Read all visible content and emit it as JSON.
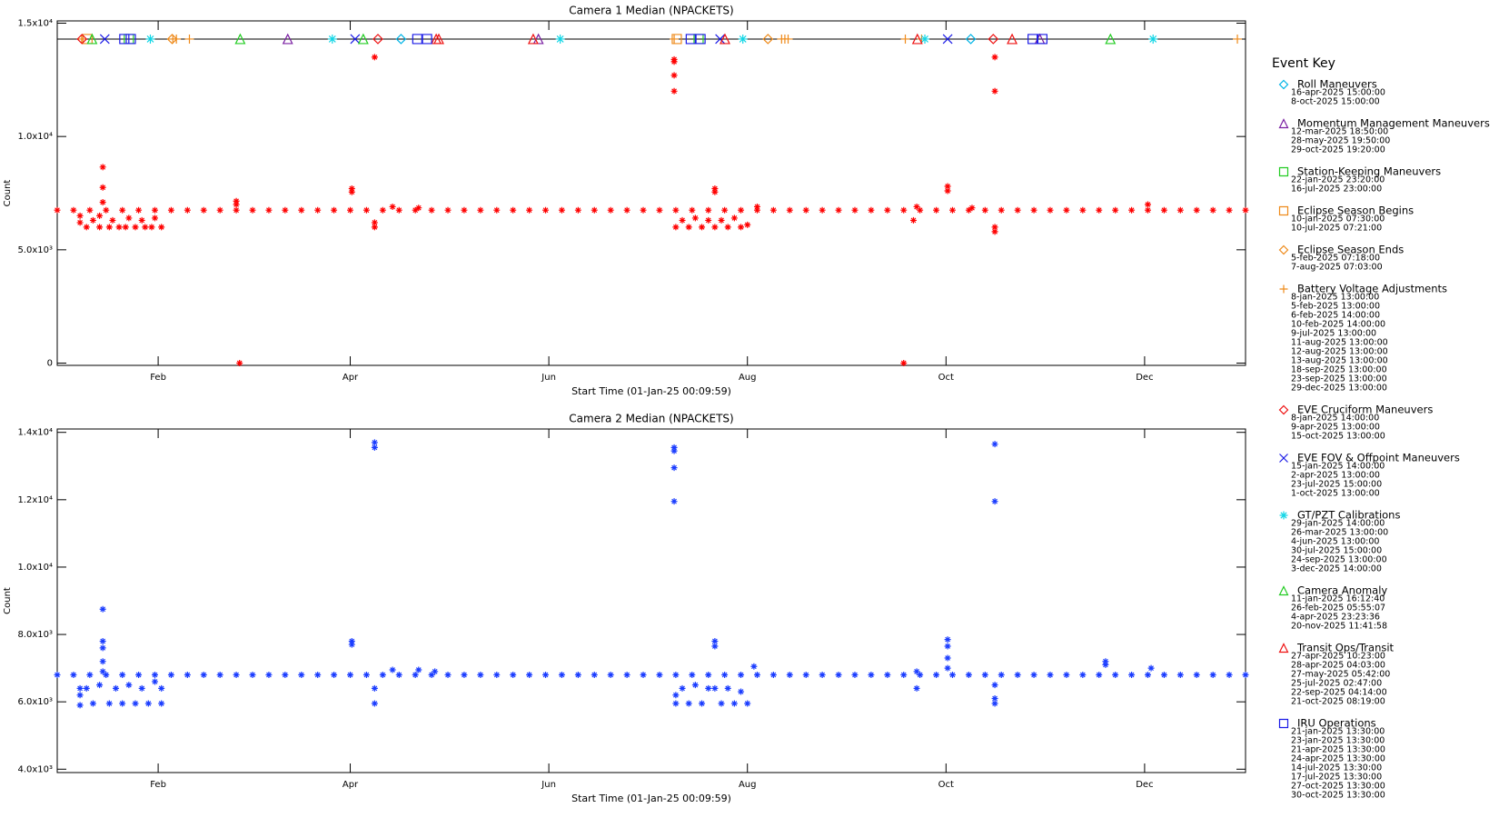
{
  "chart_data": [
    {
      "type": "scatter",
      "title": "Camera 1 Median (NPACKETS)",
      "xlabel": "Start Time (01-Jan-25 00:09:59)",
      "ylabel": "Count",
      "color": "#ff0000",
      "xlim": [
        0,
        365
      ],
      "ylim": [
        -100,
        15100
      ],
      "xticks": [
        {
          "value": 31,
          "label": "Feb"
        },
        {
          "value": 90,
          "label": "Apr"
        },
        {
          "value": 151,
          "label": "Jun"
        },
        {
          "value": 212,
          "label": "Aug"
        },
        {
          "value": 273,
          "label": "Oct"
        },
        {
          "value": 334,
          "label": "Dec"
        }
      ],
      "yticks": [
        0,
        {
          "value": 5000,
          "label": "5.0x10³"
        },
        {
          "value": 10000,
          "label": "1.0x10⁴"
        },
        {
          "value": 15000,
          "label": "1.5x10⁴"
        }
      ],
      "x": [
        0,
        5,
        10,
        15,
        20,
        25,
        30,
        35,
        40,
        45,
        50,
        55,
        60,
        65,
        70,
        75,
        80,
        85,
        90,
        95,
        100,
        105,
        110,
        115,
        120,
        125,
        130,
        135,
        140,
        145,
        150,
        155,
        160,
        165,
        170,
        175,
        180,
        185,
        190,
        195,
        200,
        205,
        210,
        215,
        220,
        225,
        230,
        235,
        240,
        245,
        250,
        255,
        260,
        265,
        270,
        275,
        280,
        285,
        290,
        295,
        300,
        305,
        310,
        315,
        320,
        325,
        330,
        335,
        340,
        345,
        350,
        355,
        360,
        365,
        7,
        7,
        9,
        11,
        13,
        13,
        14,
        14,
        14,
        16,
        17,
        19,
        21,
        22,
        24,
        26,
        27,
        29,
        30,
        32,
        55,
        55,
        56,
        90.5,
        90.5,
        97.5,
        97.5,
        97.5,
        103,
        111,
        189.5,
        189.5,
        189.5,
        189.5,
        190,
        192,
        194,
        196,
        198,
        200,
        202,
        202,
        202,
        204,
        206,
        208,
        210,
        212,
        215,
        260,
        263,
        264,
        273.5,
        273.5,
        281,
        288,
        288,
        288,
        288,
        335
      ],
      "values": [
        6750,
        6750,
        6750,
        6750,
        6750,
        6750,
        6750,
        6750,
        6750,
        6750,
        6750,
        6750,
        6750,
        6750,
        6750,
        6750,
        6750,
        6750,
        6750,
        6750,
        6750,
        6750,
        6750,
        6750,
        6750,
        6750,
        6750,
        6750,
        6750,
        6750,
        6750,
        6750,
        6750,
        6750,
        6750,
        6750,
        6750,
        6750,
        6750,
        6750,
        6750,
        6750,
        6750,
        6750,
        6750,
        6750,
        6750,
        6750,
        6750,
        6750,
        6750,
        6750,
        6750,
        6750,
        6750,
        6750,
        6750,
        6750,
        6750,
        6750,
        6750,
        6750,
        6750,
        6750,
        6750,
        6750,
        6750,
        6750,
        6750,
        6750,
        6750,
        6750,
        6750,
        6750,
        6200,
        6500,
        6000,
        6300,
        6000,
        6500,
        8650,
        7750,
        7100,
        6000,
        6300,
        6000,
        6000,
        6400,
        6000,
        6300,
        6000,
        6000,
        6400,
        6000,
        7150,
        7000,
        0,
        7700,
        7550,
        13500,
        6200,
        6000,
        6900,
        6850,
        13400,
        13300,
        12700,
        12000,
        6000,
        6300,
        6000,
        6400,
        6000,
        6300,
        7700,
        7550,
        6000,
        6300,
        6000,
        6400,
        6000,
        6100,
        6900,
        0,
        6300,
        6900,
        7800,
        7600,
        6850,
        13500,
        12000,
        6000,
        5800,
        7000
      ],
      "event_y": 14300,
      "event_key_title": "Event Key",
      "events": [
        {
          "name": "Roll Maneuvers",
          "color": "#00b4e6",
          "symbol": "diamond",
          "dates": [
            "16-apr-2025 15:00:00",
            "8-oct-2025 15:00:00"
          ],
          "x": [
            105.6,
            280.6
          ]
        },
        {
          "name": "Momentum Management Maneuvers",
          "color": "#7a1fa2",
          "symbol": "triangle",
          "dates": [
            "12-mar-2025 18:50:00",
            "28-may-2025 19:50:00",
            "29-oct-2025 19:20:00"
          ],
          "x": [
            70.8,
            147.8,
            301.8
          ]
        },
        {
          "name": "Station-Keeping Maneuvers",
          "color": "#22cc22",
          "symbol": "square",
          "dates": [
            "22-jan-2025 23:20:00",
            "16-jul-2025 23:00:00"
          ],
          "x": [
            22.0,
            197.0
          ]
        },
        {
          "name": "Eclipse Season Begins",
          "color": "#ee8a1a",
          "symbol": "square",
          "dates": [
            "10-jan-2025 07:30:00",
            "10-jul-2025 07:21:00"
          ],
          "x": [
            9.3,
            190.3
          ]
        },
        {
          "name": "Eclipse Season Ends",
          "color": "#ee8a1a",
          "symbol": "diamond",
          "dates": [
            "5-feb-2025 07:18:00",
            "7-aug-2025 07:03:00"
          ],
          "x": [
            35.3,
            218.3
          ]
        },
        {
          "name": "Battery Voltage Adjustments",
          "color": "#ee8a1a",
          "symbol": "plus",
          "dates": [
            "8-jan-2025 13:00:00",
            "5-feb-2025 13:00:00",
            "6-feb-2025 14:00:00",
            "10-feb-2025 14:00:00",
            "9-jul-2025 13:00:00",
            "11-aug-2025 13:00:00",
            "12-aug-2025 13:00:00",
            "13-aug-2025 13:00:00",
            "18-sep-2025 13:00:00",
            "23-sep-2025 13:00:00",
            "29-dec-2025 13:00:00"
          ],
          "x": [
            7.5,
            35.5,
            36.6,
            40.6,
            189.5,
            222.5,
            223.5,
            224.5,
            260.5,
            265.5,
            362.5
          ]
        },
        {
          "name": "EVE Cruciform Maneuvers",
          "color": "#ee1111",
          "symbol": "diamond",
          "dates": [
            "8-jan-2025 14:00:00",
            "9-apr-2025 13:00:00",
            "15-oct-2025 13:00:00"
          ],
          "x": [
            7.6,
            98.5,
            287.5
          ]
        },
        {
          "name": "EVE FOV & Offpoint Maneuvers",
          "color": "#1a1ae6",
          "symbol": "x",
          "dates": [
            "15-jan-2025 14:00:00",
            "2-apr-2025 13:00:00",
            "23-jul-2025 15:00:00",
            "1-oct-2025 13:00:00"
          ],
          "x": [
            14.6,
            91.5,
            203.6,
            273.5
          ]
        },
        {
          "name": "GT/PZT Calibrations",
          "color": "#11d6e6",
          "symbol": "asterisk",
          "dates": [
            "29-jan-2025 14:00:00",
            "26-mar-2025 13:00:00",
            "4-jun-2025 13:00:00",
            "30-jul-2025 15:00:00",
            "24-sep-2025 13:00:00",
            "3-dec-2025 14:00:00"
          ],
          "x": [
            28.6,
            84.5,
            154.5,
            210.6,
            266.5,
            336.6
          ]
        },
        {
          "name": "Camera Anomaly",
          "color": "#22cc22",
          "symbol": "triangle",
          "dates": [
            "11-jan-2025 16:12:40",
            "26-feb-2025 05:55:07",
            "4-apr-2025 23:23:36",
            "20-nov-2025 11:41:58"
          ],
          "x": [
            10.7,
            56.2,
            94.0,
            323.5
          ]
        },
        {
          "name": "Transit Ops/Transit",
          "color": "#ee1111",
          "symbol": "triangle",
          "dates": [
            "27-apr-2025 10:23:00",
            "28-apr-2025 04:03:00",
            "27-may-2025 05:42:00",
            "25-jul-2025 02:47:00",
            "22-sep-2025 04:14:00",
            "21-oct-2025 08:19:00"
          ],
          "x": [
            116.4,
            117.2,
            146.2,
            205.1,
            264.2,
            293.3
          ]
        },
        {
          "name": "IRU Operations",
          "color": "#1a1ae6",
          "symbol": "square",
          "dates": [
            "21-jan-2025 13:30:00",
            "23-jan-2025 13:30:00",
            "21-apr-2025 13:30:00",
            "24-apr-2025 13:30:00",
            "14-jul-2025 13:30:00",
            "17-jul-2025 13:30:00",
            "27-oct-2025 13:30:00",
            "30-oct-2025 13:30:00"
          ],
          "x": [
            20.6,
            22.6,
            110.6,
            113.6,
            194.6,
            197.6,
            299.6,
            302.6
          ]
        }
      ]
    },
    {
      "type": "scatter",
      "title": "Camera 2 Median (NPACKETS)",
      "xlabel": "Start Time (01-Jan-25 00:09:59)",
      "ylabel": "Count",
      "color": "#1a3cff",
      "xlim": [
        0,
        365
      ],
      "ylim": [
        3900,
        14100
      ],
      "xticks": [
        {
          "value": 31,
          "label": "Feb"
        },
        {
          "value": 90,
          "label": "Apr"
        },
        {
          "value": 151,
          "label": "Jun"
        },
        {
          "value": 212,
          "label": "Aug"
        },
        {
          "value": 273,
          "label": "Oct"
        },
        {
          "value": 334,
          "label": "Dec"
        }
      ],
      "yticks": [
        {
          "value": 4000,
          "label": "4.0x10³"
        },
        {
          "value": 6000,
          "label": "6.0x10³"
        },
        {
          "value": 8000,
          "label": "8.0x10³"
        },
        {
          "value": 10000,
          "label": "1.0x10⁴"
        },
        {
          "value": 12000,
          "label": "1.2x10⁴"
        },
        {
          "value": 14000,
          "label": "1.4x10⁴"
        }
      ],
      "x": [
        0,
        5,
        10,
        15,
        20,
        25,
        30,
        35,
        40,
        45,
        50,
        55,
        60,
        65,
        70,
        75,
        80,
        85,
        90,
        95,
        100,
        105,
        110,
        115,
        120,
        125,
        130,
        135,
        140,
        145,
        150,
        155,
        160,
        165,
        170,
        175,
        180,
        185,
        190,
        195,
        200,
        205,
        210,
        215,
        220,
        225,
        230,
        235,
        240,
        245,
        250,
        255,
        260,
        265,
        270,
        275,
        280,
        285,
        290,
        295,
        300,
        305,
        310,
        315,
        320,
        325,
        330,
        335,
        340,
        345,
        350,
        355,
        360,
        365,
        7,
        7,
        7,
        9,
        11,
        13,
        14,
        14,
        14,
        14,
        14,
        16,
        18,
        20,
        22,
        24,
        26,
        28,
        30,
        32,
        32,
        90.5,
        90.5,
        97.5,
        97.5,
        97.5,
        97.5,
        103,
        111,
        116,
        189.5,
        189.5,
        189.5,
        189.5,
        190,
        190,
        192,
        194,
        196,
        198,
        200,
        202,
        202,
        202,
        204,
        206,
        208,
        210,
        212,
        214,
        264,
        264,
        273.5,
        273.5,
        273.5,
        273.5,
        288,
        288,
        288,
        288,
        288,
        322,
        322,
        336
      ],
      "values": [
        6800,
        6800,
        6800,
        6800,
        6800,
        6800,
        6800,
        6800,
        6800,
        6800,
        6800,
        6800,
        6800,
        6800,
        6800,
        6800,
        6800,
        6800,
        6800,
        6800,
        6800,
        6800,
        6800,
        6800,
        6800,
        6800,
        6800,
        6800,
        6800,
        6800,
        6800,
        6800,
        6800,
        6800,
        6800,
        6800,
        6800,
        6800,
        6800,
        6800,
        6800,
        6800,
        6800,
        6800,
        6800,
        6800,
        6800,
        6800,
        6800,
        6800,
        6800,
        6800,
        6800,
        6800,
        6800,
        6800,
        6800,
        6800,
        6800,
        6800,
        6800,
        6800,
        6800,
        6800,
        6800,
        6800,
        6800,
        6800,
        6800,
        6800,
        6800,
        6800,
        6800,
        6800,
        5900,
        6200,
        6400,
        6400,
        5950,
        6500,
        8750,
        7800,
        7600,
        7200,
        6900,
        5950,
        6400,
        5950,
        6500,
        5950,
        6400,
        5950,
        6600,
        5950,
        6400,
        7800,
        7700,
        13700,
        13550,
        6400,
        5950,
        6950,
        6950,
        6900,
        13550,
        13450,
        12950,
        11950,
        5950,
        6200,
        6400,
        5950,
        6500,
        5950,
        6400,
        7800,
        7650,
        6400,
        5950,
        6400,
        5950,
        6300,
        5950,
        7050,
        6400,
        6900,
        7850,
        7650,
        7300,
        7000,
        13650,
        11950,
        6500,
        6100,
        5950,
        7200,
        7100,
        7000
      ]
    }
  ]
}
